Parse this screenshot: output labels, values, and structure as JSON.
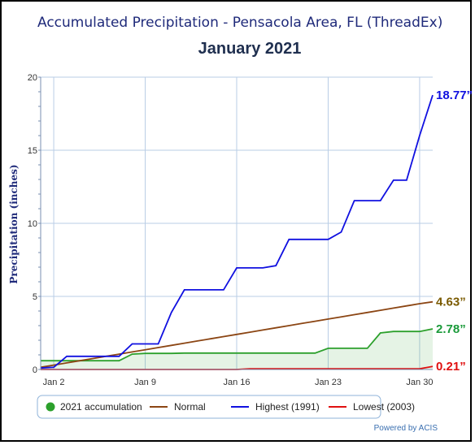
{
  "chart_data": {
    "type": "line",
    "title": "Accumulated Precipitation - Pensacola Area, FL (ThreadEx)",
    "subtitle": "January 2021",
    "ylabel": "Precipitation (inches)",
    "xlabel": "",
    "ylim": [
      0,
      20
    ],
    "yticks": [
      0,
      5,
      10,
      15,
      20
    ],
    "xlim": [
      1,
      31
    ],
    "xticks": [
      {
        "day": 2,
        "label": "Jan 2"
      },
      {
        "day": 9,
        "label": "Jan 9"
      },
      {
        "day": 16,
        "label": "Jan 16"
      },
      {
        "day": 23,
        "label": "Jan 23"
      },
      {
        "day": 30,
        "label": "Jan 30"
      }
    ],
    "grid": true,
    "legend_position": "bottom",
    "series": [
      {
        "name": "2021 accumulation",
        "color": "#2ca02c",
        "fill": true,
        "values": [
          0.6,
          0.6,
          0.6,
          0.6,
          0.6,
          0.6,
          0.6,
          1.05,
          1.1,
          1.1,
          1.1,
          1.12,
          1.12,
          1.12,
          1.12,
          1.12,
          1.12,
          1.12,
          1.12,
          1.12,
          1.12,
          1.12,
          1.45,
          1.45,
          1.45,
          1.45,
          2.5,
          2.6,
          2.6,
          2.6,
          2.78
        ]
      },
      {
        "name": "Normal",
        "color": "#8b4513",
        "fill": false,
        "values": [
          0.15,
          0.3,
          0.45,
          0.6,
          0.75,
          0.9,
          1.05,
          1.2,
          1.35,
          1.5,
          1.65,
          1.8,
          1.95,
          2.1,
          2.25,
          2.4,
          2.55,
          2.7,
          2.85,
          3.0,
          3.15,
          3.3,
          3.45,
          3.6,
          3.75,
          3.9,
          4.05,
          4.2,
          4.35,
          4.5,
          4.63
        ]
      },
      {
        "name": "Highest (1991)",
        "color": "#1010e0",
        "fill": false,
        "values": [
          0.1,
          0.15,
          0.9,
          0.9,
          0.9,
          0.9,
          0.9,
          1.75,
          1.75,
          1.75,
          3.9,
          5.45,
          5.45,
          5.45,
          5.45,
          6.95,
          6.95,
          6.95,
          7.1,
          8.9,
          8.9,
          8.9,
          8.9,
          9.4,
          11.55,
          11.55,
          11.55,
          12.95,
          12.95,
          16.0,
          18.77
        ]
      },
      {
        "name": "Lowest (2003)",
        "color": "#e01010",
        "fill": false,
        "values": [
          0.0,
          0.0,
          0.0,
          0.0,
          0.0,
          0.0,
          0.0,
          0.0,
          0.0,
          0.0,
          0.0,
          0.0,
          0.0,
          0.0,
          0.0,
          0.0,
          0.05,
          0.05,
          0.05,
          0.05,
          0.05,
          0.05,
          0.05,
          0.05,
          0.05,
          0.05,
          0.05,
          0.05,
          0.05,
          0.05,
          0.21
        ]
      }
    ],
    "end_labels": [
      {
        "series": "Highest (1991)",
        "text": "18.77”",
        "color": "#1010e0"
      },
      {
        "series": "Normal",
        "text": "4.63”",
        "color": "#7a5a00"
      },
      {
        "series": "2021 accumulation",
        "text": "2.78”",
        "color": "#1a9a3a"
      },
      {
        "series": "Lowest (2003)",
        "text": "0.21”",
        "color": "#e01010"
      }
    ],
    "credit": "Powered by ACIS"
  }
}
